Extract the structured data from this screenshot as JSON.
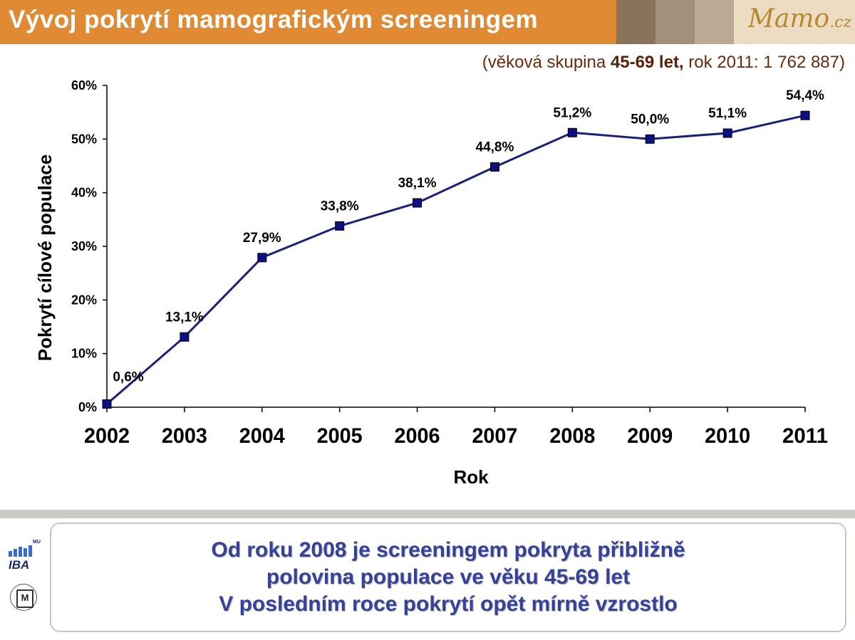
{
  "header": {
    "title": "Vývoj pokrytí mamografickým screeningem",
    "logo": "Mamo",
    "logo_tld": ".cz",
    "subtitle_pre": "(věková skupina ",
    "subtitle_bold": "45-69 let,",
    "subtitle_post": " rok 2011: 1 762 887)"
  },
  "chart_data": {
    "type": "line",
    "title": "",
    "xlabel": "Rok",
    "ylabel": "Pokrytí cílové populace",
    "categories": [
      "2002",
      "2003",
      "2004",
      "2005",
      "2006",
      "2007",
      "2008",
      "2009",
      "2010",
      "2011"
    ],
    "values": [
      0.6,
      13.1,
      27.9,
      33.8,
      38.1,
      44.8,
      51.2,
      50.0,
      51.1,
      54.4
    ],
    "data_labels": [
      "0,6%",
      "13,1%",
      "27,9%",
      "33,8%",
      "38,1%",
      "44,8%",
      "51,2%",
      "50,0%",
      "51,1%",
      "54,4%"
    ],
    "yticks": [
      "0%",
      "10%",
      "20%",
      "30%",
      "40%",
      "50%",
      "60%"
    ],
    "ylim": [
      0,
      60
    ],
    "grid": false,
    "legend": "none",
    "series_color": "#1a1f7a",
    "marker_color": "#0d1080"
  },
  "footer": {
    "line1": "Od roku 2008 je screeningem pokryta přibližně",
    "line2": "polovina populace ve věku 45-69 let",
    "line3": "V posledním roce pokrytí opět mírně vzrostlo",
    "iba_label": "IBA",
    "iba_mu": "MU",
    "uni_mark": "M"
  }
}
